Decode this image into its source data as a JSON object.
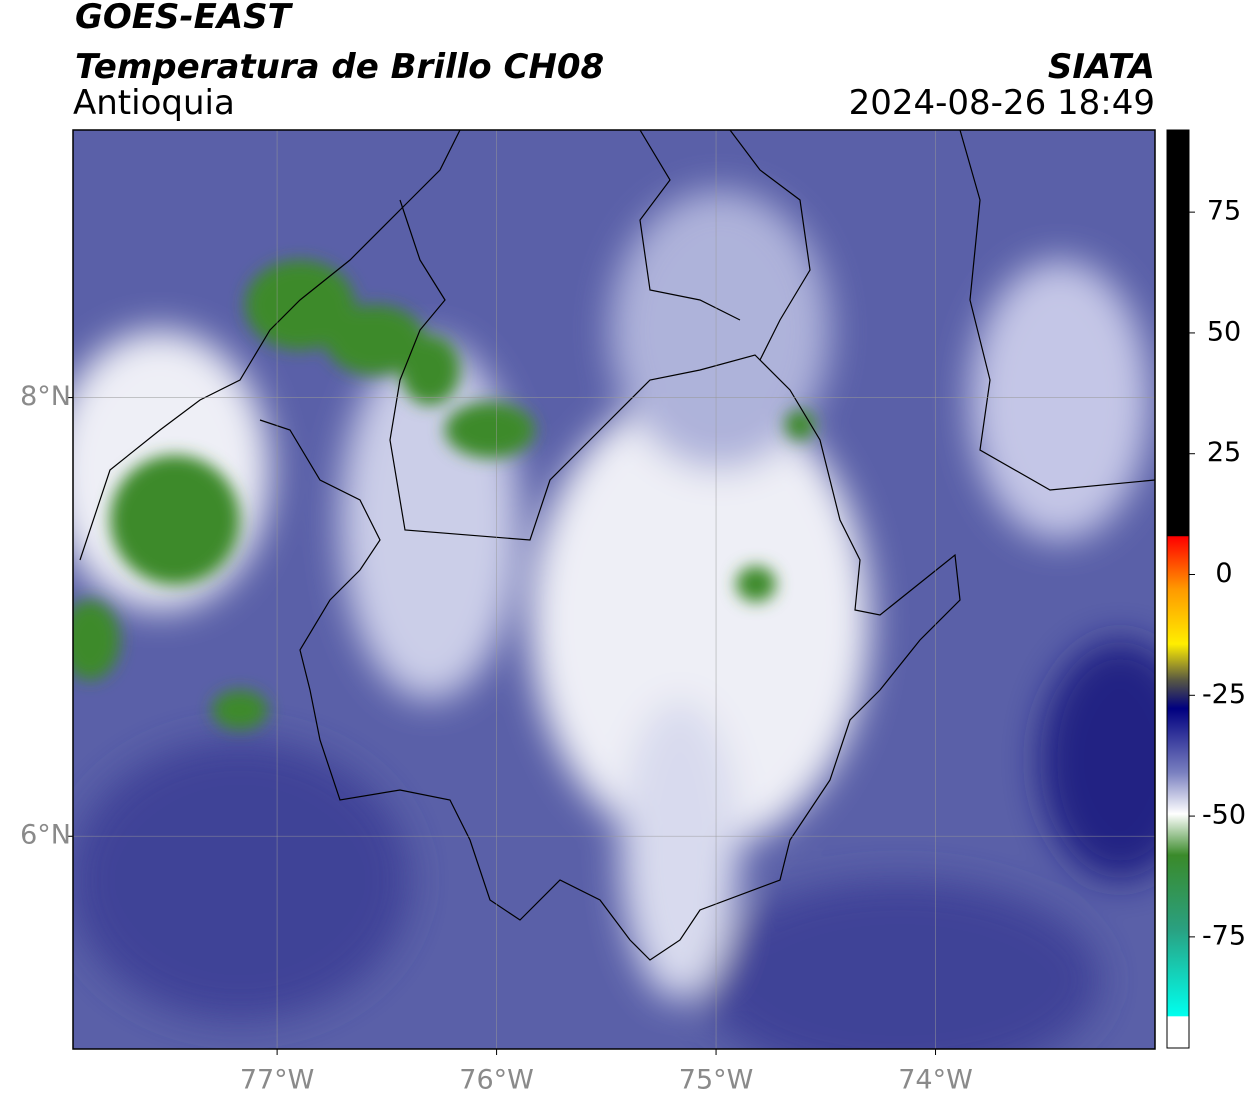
{
  "header": {
    "title": "GOES-EAST",
    "subtitle": "Temperatura de Brillo CH08",
    "region": "Antioquia",
    "source": "SIATA",
    "datetime": "2024-08-26 18:49"
  },
  "map": {
    "xlim": [
      -77.93,
      -73.0
    ],
    "ylim": [
      5.03,
      9.22
    ],
    "xticks": [
      {
        "value": -77,
        "label": "77°W"
      },
      {
        "value": -76,
        "label": "76°W"
      },
      {
        "value": -75,
        "label": "75°W"
      },
      {
        "value": -74,
        "label": "74°W"
      }
    ],
    "yticks": [
      {
        "value": 8,
        "label": "8°N"
      },
      {
        "value": 6,
        "label": "6°N"
      }
    ],
    "grid": true
  },
  "colorbar": {
    "lim": [
      -98,
      92
    ],
    "ticks": [
      75,
      50,
      25,
      0,
      -25,
      -50,
      -75
    ]
  }
}
